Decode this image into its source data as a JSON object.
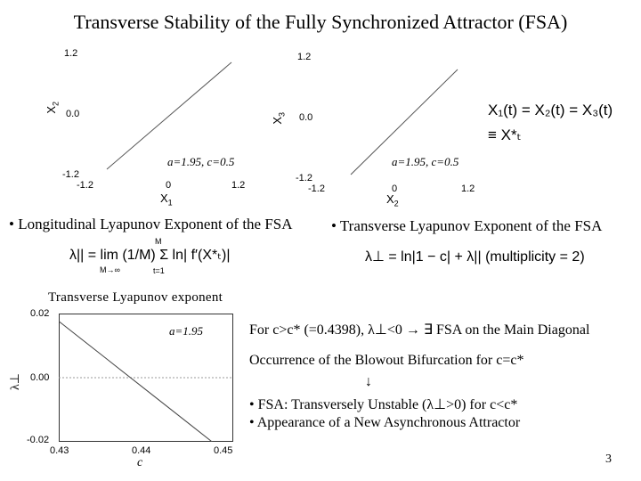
{
  "title": "Transverse Stability of the Fully Synchronized Attractor (FSA)",
  "plot1": {
    "ylabel": "X",
    "ylabel_sub": "2",
    "xlabel": "X",
    "xlabel_sub": "1",
    "yticks": [
      "1.2",
      "0.0",
      "-1.2"
    ],
    "xticks": [
      "-1.2",
      "0",
      "1.2"
    ],
    "annotation": "a=1.95, c=0.5"
  },
  "plot2": {
    "ylabel": "X",
    "ylabel_sub": "3",
    "xlabel": "X",
    "xlabel_sub": "2",
    "yticks": [
      "1.2",
      "0.0",
      "-1.2"
    ],
    "xticks": [
      "-1.2",
      "0",
      "1.2"
    ],
    "annotation": "a=1.95, c=0.5"
  },
  "sync_equation": {
    "line1": "X₁(t) = X₂(t) = X₃(t)",
    "line2": "≡ X*ₜ"
  },
  "longitudinal": {
    "heading": "• Longitudinal Lyapunov Exponent of the FSA",
    "formula": "λ|| = lim (1/M) Σ ln| f′(X*ₜ)|",
    "limit_sub": "M→∞",
    "sum_top": "M",
    "sum_bottom": "t=1"
  },
  "transverse": {
    "heading": "• Transverse Lyapunov Exponent of the FSA",
    "formula": "λ⊥ = ln|1 − c| + λ||   (multiplicity = 2)"
  },
  "plot3": {
    "header": "Transverse Lyapunov exponent",
    "annotation": "a=1.95",
    "ylabel": "λ⊥",
    "xlabel": "c",
    "yticks": [
      "0.02",
      "0.00",
      "-0.02"
    ],
    "xticks": [
      "0.43",
      "0.44",
      "0.45"
    ]
  },
  "chart_data": {
    "type": "line",
    "title": "Transverse Lyapunov exponent",
    "xlabel": "c",
    "ylabel": "λ⊥",
    "xlim": [
      0.43,
      0.45
    ],
    "ylim": [
      -0.02,
      0.02
    ],
    "series": [
      {
        "x": [
          0.43,
          0.435,
          0.44,
          0.445,
          0.45
        ],
        "y": [
          0.0176,
          0.0069,
          -0.0038,
          -0.0145,
          -0.0252
        ]
      }
    ],
    "grid": false
  },
  "notes": {
    "line1": "For c>c* (=0.4398), λ⊥<0 → ∃ FSA on the Main Diagonal",
    "line2": "Occurrence of the Blowout Bifurcation for c=c*",
    "arrow": "↓",
    "line3": "• FSA: Transversely Unstable (λ⊥>0) for c<c*",
    "line4": "• Appearance of a New Asynchronous Attractor"
  },
  "page_number": "3"
}
